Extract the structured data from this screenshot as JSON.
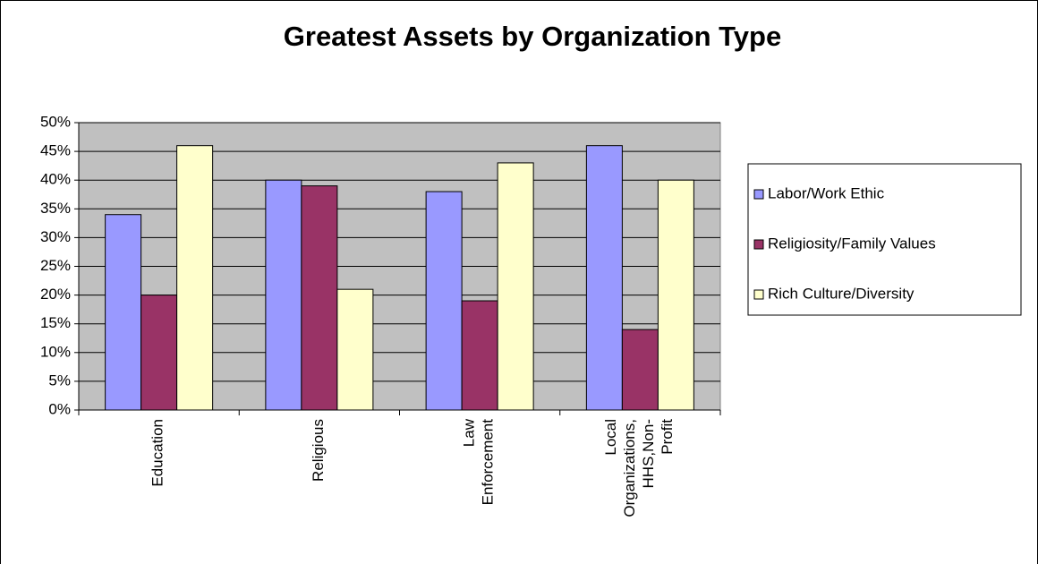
{
  "chart_data": {
    "type": "bar",
    "title": "Greatest Assets by Organization Type",
    "categories": [
      "Education",
      "Religious",
      "Law Enforcement",
      "Local Organizations, HHS,Non-Profit"
    ],
    "series": [
      {
        "name": "Labor/Work Ethic",
        "color": "#9999ff",
        "values": [
          34,
          40,
          38,
          46
        ]
      },
      {
        "name": "Religiosity/Family Values",
        "color": "#993366",
        "values": [
          20,
          39,
          19,
          14
        ]
      },
      {
        "name": "Rich Culture/Diversity",
        "color": "#ffffcc",
        "values": [
          46,
          21,
          43,
          40
        ]
      }
    ],
    "ylim": [
      0,
      50
    ],
    "yticks": [
      {
        "value": 0,
        "label": "0%"
      },
      {
        "value": 5,
        "label": "5%"
      },
      {
        "value": 10,
        "label": "10%"
      },
      {
        "value": 15,
        "label": "15%"
      },
      {
        "value": 20,
        "label": "20%"
      },
      {
        "value": 25,
        "label": "25%"
      },
      {
        "value": 30,
        "label": "30%"
      },
      {
        "value": 35,
        "label": "35%"
      },
      {
        "value": 40,
        "label": "40%"
      },
      {
        "value": 45,
        "label": "45%"
      },
      {
        "value": 50,
        "label": "50%"
      }
    ],
    "grid": true,
    "legend": "right",
    "plot_background": "#c0c0c0"
  }
}
